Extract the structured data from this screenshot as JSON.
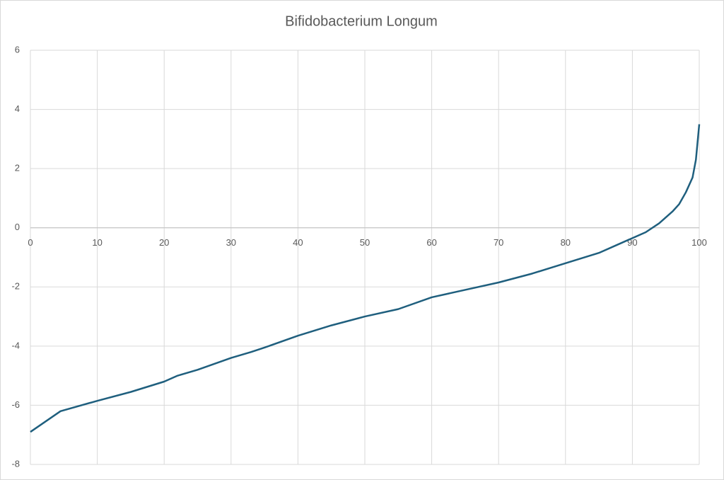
{
  "chart_data": {
    "type": "line",
    "title": "Bifidobacterium Longum",
    "x": [
      0,
      4.5,
      10,
      15,
      20,
      22,
      25,
      30,
      33,
      35,
      40,
      45,
      50,
      55,
      60,
      65,
      70,
      75,
      80,
      85,
      88,
      90,
      92,
      94,
      95,
      96,
      97,
      98,
      99,
      99.5,
      100
    ],
    "series": [
      {
        "name": "Bifidobacterium Longum",
        "color": "#1f5f7e",
        "values": [
          -6.9,
          -6.2,
          -5.85,
          -5.55,
          -5.2,
          -5.0,
          -4.8,
          -4.4,
          -4.2,
          -4.05,
          -3.65,
          -3.3,
          -3.0,
          -2.75,
          -2.35,
          -2.1,
          -1.85,
          -1.55,
          -1.2,
          -0.85,
          -0.55,
          -0.35,
          -0.15,
          0.15,
          0.35,
          0.55,
          0.8,
          1.2,
          1.7,
          2.3,
          3.5
        ]
      }
    ],
    "xlim": [
      0,
      100
    ],
    "xticks": [
      0,
      10,
      20,
      30,
      40,
      50,
      60,
      70,
      80,
      90,
      100
    ],
    "ylim": [
      -8,
      6
    ],
    "yticks": [
      -8,
      -6,
      -4,
      -2,
      0,
      2,
      4,
      6
    ],
    "grid": true
  }
}
